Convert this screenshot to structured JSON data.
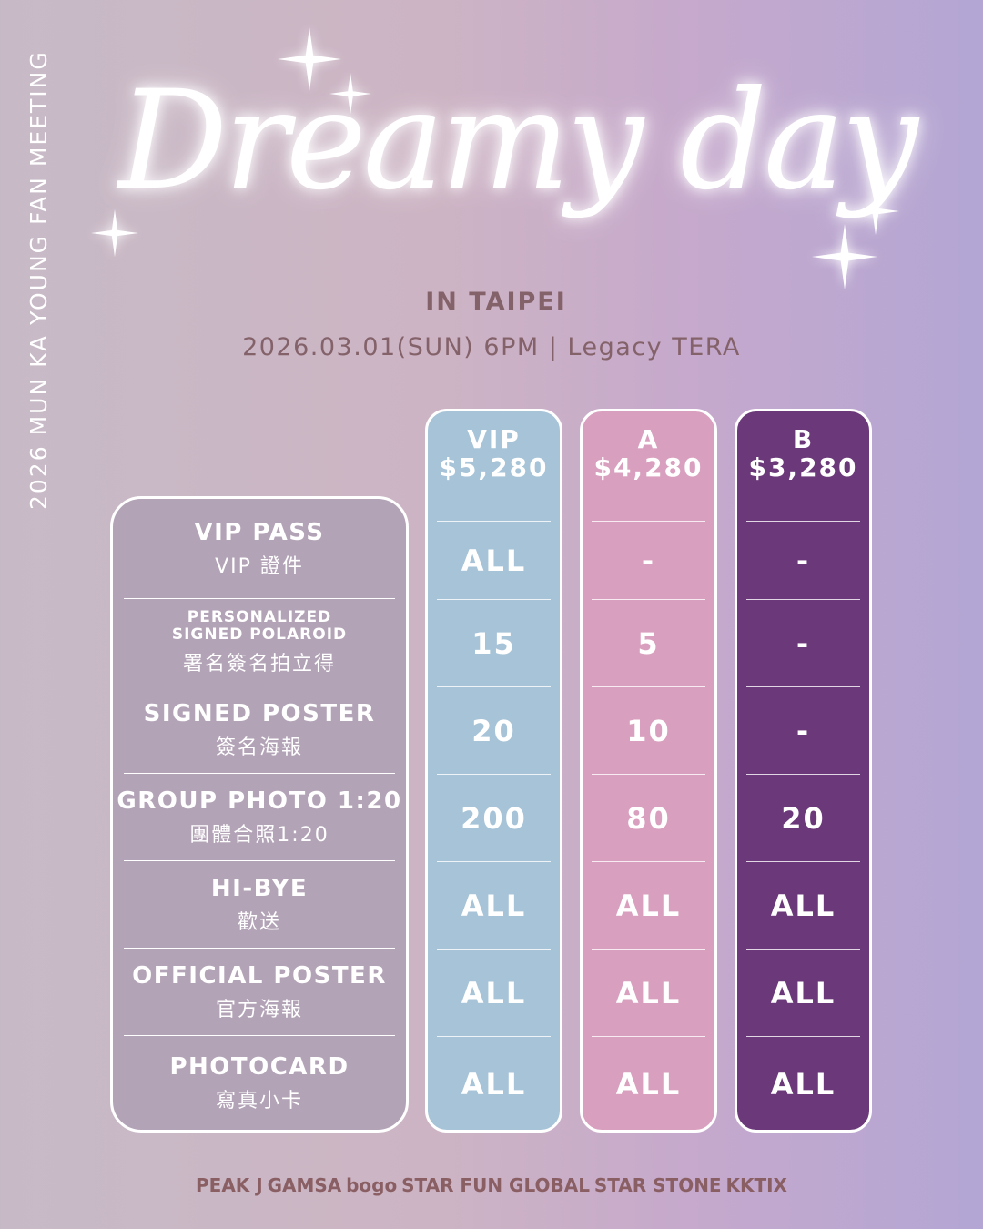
{
  "side_text": "2026 MUN KA YOUNG FAN MEETING",
  "title": "Dreamy day",
  "city": "IN TAIPEI",
  "datetime_venue": "2026.03.01(SUN) 6PM | Legacy TERA",
  "benefits": [
    {
      "en": "VIP PASS",
      "zh": "VIP 證件"
    },
    {
      "en": "PERSONALIZED SIGNED POLAROID",
      "zh": "署名簽名拍立得"
    },
    {
      "en": "SIGNED POSTER",
      "zh": "簽名海報"
    },
    {
      "en": "GROUP PHOTO 1:20",
      "zh": "團體合照1:20"
    },
    {
      "en": "HI-BYE",
      "zh": "歡送"
    },
    {
      "en": "OFFICIAL POSTER",
      "zh": "官方海報"
    },
    {
      "en": "PHOTOCARD",
      "zh": "寫真小卡"
    }
  ],
  "tiers": [
    {
      "name": "VIP",
      "price": "$5,280",
      "color": "#a6c3d7",
      "values": [
        "ALL",
        "15",
        "20",
        "200",
        "ALL",
        "ALL",
        "ALL"
      ]
    },
    {
      "name": "A",
      "price": "$4,280",
      "color": "#d99fbe",
      "values": [
        "-",
        "5",
        "10",
        "80",
        "ALL",
        "ALL",
        "ALL"
      ]
    },
    {
      "name": "B",
      "price": "$3,280",
      "color": "#6b3979",
      "values": [
        "-",
        "-",
        "-",
        "20",
        "ALL",
        "ALL",
        "ALL"
      ]
    }
  ],
  "logos": [
    "PEAK J",
    "GAMSA",
    "bogo",
    "STAR FUN GLOBAL",
    "STAR STONE",
    "KKTIX"
  ]
}
